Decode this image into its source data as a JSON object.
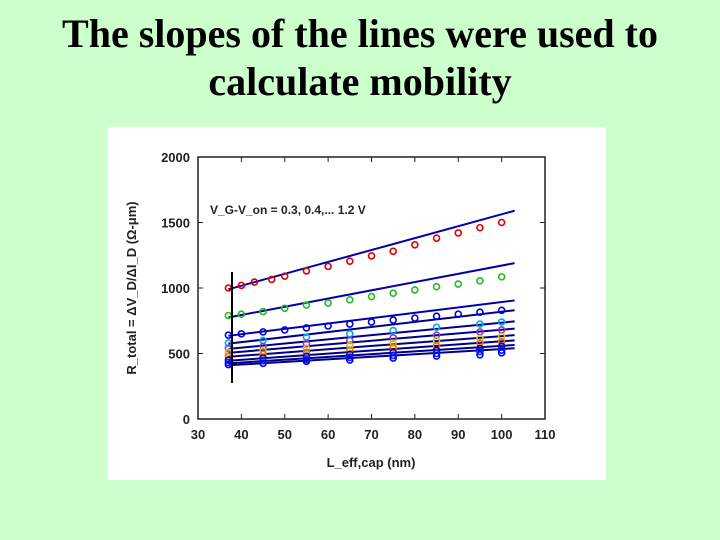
{
  "slide": {
    "title_line1": "The slopes of the lines were used to",
    "title_line2": "calculate mobility"
  },
  "chart_data": {
    "type": "scatter",
    "title": "",
    "xlabel": "L_eff,cap (nm)",
    "ylabel": "R_total = ΔV_D/ΔI_D (Ω-μm)",
    "annotation": "V_G-V_on = 0.3, 0.4,... 1.2 V",
    "xlim": [
      30,
      110
    ],
    "ylim": [
      0,
      2000
    ],
    "x_ticks": [
      30,
      40,
      50,
      60,
      70,
      80,
      90,
      100,
      110
    ],
    "y_ticks": [
      0,
      500,
      1000,
      1500,
      2000
    ],
    "grid": false,
    "series": [
      {
        "color": "#dd0000",
        "x": [
          37,
          40,
          43,
          47,
          50,
          55,
          60,
          65,
          70,
          75,
          80,
          85,
          90,
          95,
          100
        ],
        "y": [
          1000,
          1020,
          1045,
          1065,
          1090,
          1130,
          1165,
          1205,
          1245,
          1280,
          1330,
          1380,
          1420,
          1460,
          1500
        ]
      },
      {
        "color": "#22bb22",
        "x": [
          37,
          40,
          45,
          50,
          55,
          60,
          65,
          70,
          75,
          80,
          85,
          90,
          95,
          100
        ],
        "y": [
          790,
          800,
          820,
          845,
          870,
          885,
          910,
          935,
          960,
          985,
          1010,
          1030,
          1055,
          1085
        ]
      },
      {
        "color": "#0000dd",
        "x": [
          37,
          40,
          45,
          50,
          55,
          60,
          65,
          70,
          75,
          80,
          85,
          90,
          95,
          100
        ],
        "y": [
          640,
          650,
          665,
          680,
          695,
          710,
          725,
          740,
          755,
          770,
          785,
          800,
          815,
          830
        ]
      },
      {
        "color": "#00aadd",
        "x": [
          37,
          45,
          55,
          65,
          75,
          85,
          95,
          100
        ],
        "y": [
          580,
          600,
          625,
          650,
          675,
          700,
          725,
          740
        ]
      },
      {
        "color": "#9933cc",
        "x": [
          37,
          45,
          55,
          65,
          75,
          85,
          95,
          100
        ],
        "y": [
          540,
          555,
          575,
          600,
          620,
          640,
          665,
          680
        ]
      },
      {
        "color": "#cccc00",
        "x": [
          37,
          45,
          55,
          65,
          75,
          85,
          95,
          100
        ],
        "y": [
          510,
          520,
          540,
          560,
          580,
          600,
          615,
          630
        ]
      },
      {
        "color": "#ff6600",
        "x": [
          37,
          45,
          55,
          65,
          75,
          85,
          95,
          100
        ],
        "y": [
          480,
          495,
          510,
          525,
          545,
          560,
          580,
          590
        ]
      },
      {
        "color": "#0000cc",
        "x": [
          37,
          45,
          55,
          65,
          75,
          85,
          95,
          100
        ],
        "y": [
          450,
          465,
          480,
          495,
          510,
          525,
          540,
          555
        ]
      },
      {
        "color": "#0022ee",
        "x": [
          37,
          45,
          55,
          65,
          75,
          85,
          95,
          100
        ],
        "y": [
          430,
          445,
          455,
          470,
          485,
          500,
          515,
          525
        ]
      },
      {
        "color": "#0000ff",
        "x": [
          37,
          45,
          55,
          65,
          75,
          85,
          95,
          100
        ],
        "y": [
          415,
          425,
          440,
          450,
          465,
          480,
          490,
          505
        ]
      }
    ],
    "fit_lines": [
      {
        "color": "#0000aa",
        "x": [
          37,
          103
        ],
        "y": [
          990,
          1590
        ]
      },
      {
        "color": "#0000aa",
        "x": [
          37,
          103
        ],
        "y": [
          775,
          1190
        ]
      },
      {
        "color": "#0000aa",
        "x": [
          37,
          103
        ],
        "y": [
          635,
          905
        ]
      },
      {
        "color": "#000088",
        "x": [
          37,
          103
        ],
        "y": [
          575,
          830
        ]
      },
      {
        "color": "#000088",
        "x": [
          37,
          103
        ],
        "y": [
          535,
          745
        ]
      },
      {
        "color": "#000088",
        "x": [
          37,
          103
        ],
        "y": [
          505,
          690
        ]
      },
      {
        "color": "#000088",
        "x": [
          37,
          103
        ],
        "y": [
          475,
          640
        ]
      },
      {
        "color": "#000088",
        "x": [
          37,
          103
        ],
        "y": [
          445,
          600
        ]
      },
      {
        "color": "#000088",
        "x": [
          37,
          103
        ],
        "y": [
          425,
          565
        ]
      },
      {
        "color": "#000088",
        "x": [
          37,
          103
        ],
        "y": [
          410,
          540
        ]
      }
    ]
  }
}
